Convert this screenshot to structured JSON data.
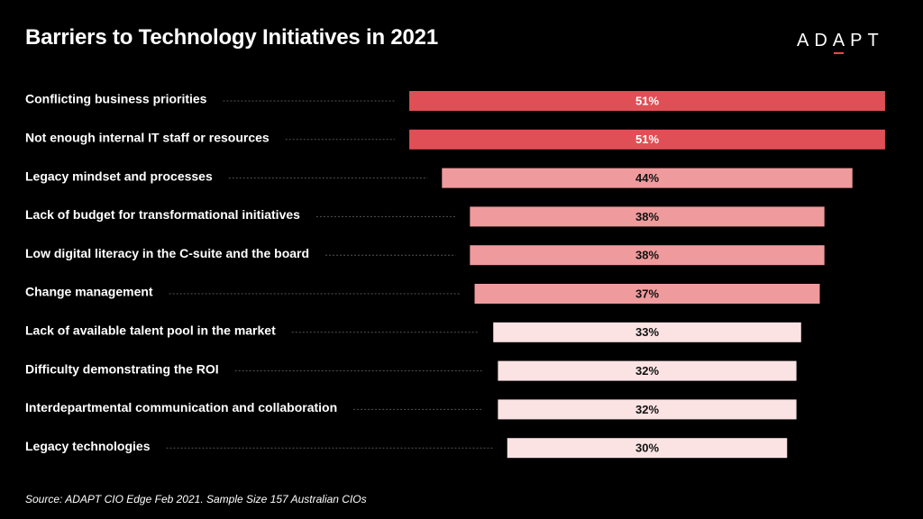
{
  "header": {
    "title": "Barriers to Technology Initiatives in 2021",
    "logo_pre": "AD",
    "logo_a": "A",
    "logo_post": "PT"
  },
  "footer": {
    "source": "Source: ADAPT CIO Edge Feb 2021. Sample Size 157 Australian CIOs"
  },
  "colors": {
    "background": "#000000",
    "text": "#ffffff",
    "dashed_leader": "#555555",
    "bar_high": "#e04f55",
    "bar_mid": "#ef9a9c",
    "bar_low": "#fbe3e4",
    "logo_accent": "#e8474f"
  },
  "chart_data": {
    "type": "bar",
    "orientation": "horizontal",
    "layout": "funnel-centered",
    "categories": [
      "Conflicting business priorities",
      "Not enough internal IT staff or resources",
      "Legacy mindset and processes",
      "Lack of budget for transformational initiatives",
      "Low digital literacy in the C-suite and the board",
      "Change management",
      "Lack of available talent pool in the market",
      "Difficulty demonstrating the ROI",
      "Interdepartmental communication and collaboration",
      "Legacy technologies"
    ],
    "values": [
      51,
      51,
      44,
      38,
      38,
      37,
      33,
      32,
      32,
      30
    ],
    "value_labels": [
      "51%",
      "51%",
      "44%",
      "38%",
      "38%",
      "37%",
      "33%",
      "32%",
      "32%",
      "30%"
    ],
    "unit": "%",
    "title": "Barriers to Technology Initiatives in 2021",
    "xlabel": "",
    "ylabel": "",
    "grid": false,
    "legend": "none"
  }
}
